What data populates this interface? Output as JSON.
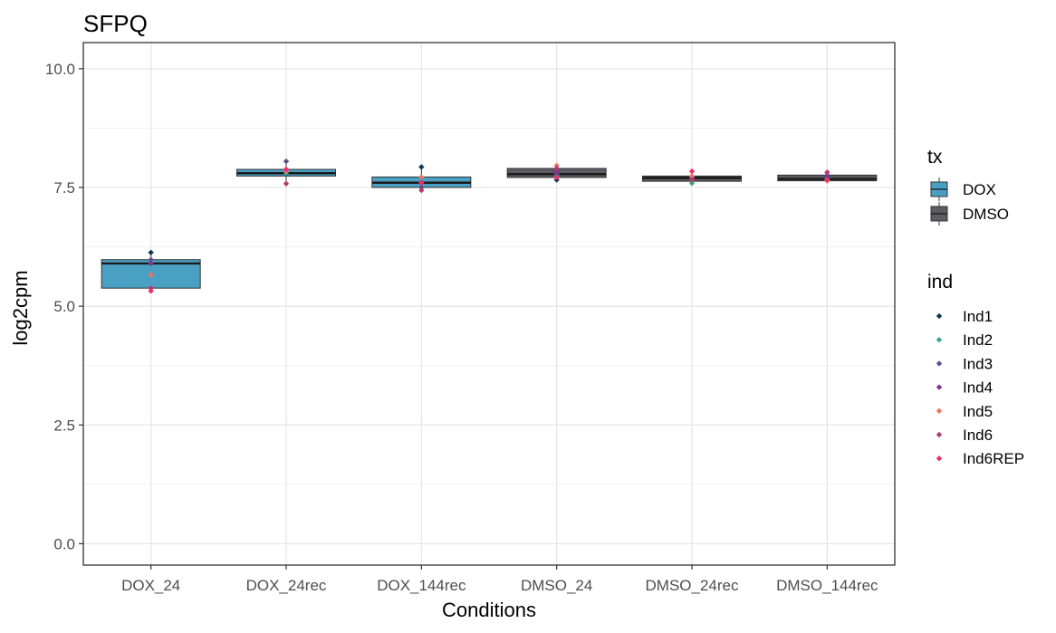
{
  "chart_data": {
    "type": "box",
    "title": "SFPQ",
    "xlabel": "Conditions",
    "ylabel": "log2cpm",
    "ylim": [
      -0.45,
      10.55
    ],
    "yticks": [
      0.0,
      2.5,
      5.0,
      7.5,
      10.0
    ],
    "ytick_labels": [
      "0.0",
      "2.5",
      "5.0",
      "7.5",
      "10.0"
    ],
    "categories": [
      "DOX_24",
      "DOX_24rec",
      "DOX_144rec",
      "DMSO_24",
      "DMSO_24rec",
      "DMSO_144rec"
    ],
    "grid": true,
    "legend_position": "right",
    "tx_legend": {
      "title": "tx",
      "items": [
        {
          "name": "DOX",
          "color": "#4aa0c3"
        },
        {
          "name": "DMSO",
          "color": "#5d5c63"
        }
      ]
    },
    "ind_legend": {
      "title": "ind",
      "items": [
        {
          "name": "Ind1",
          "color": "#0d3a4f"
        },
        {
          "name": "Ind2",
          "color": "#3aa58a"
        },
        {
          "name": "Ind3",
          "color": "#5c4f8e"
        },
        {
          "name": "Ind4",
          "color": "#7b3294"
        },
        {
          "name": "Ind5",
          "color": "#f0715f"
        },
        {
          "name": "Ind6",
          "color": "#b5386e"
        },
        {
          "name": "Ind6REP",
          "color": "#ef2b6c"
        }
      ]
    },
    "boxes": [
      {
        "category": "DOX_24",
        "tx": "DOX",
        "q1": 5.38,
        "median": 5.9,
        "q3": 5.98,
        "min": 5.32,
        "max": 6.13,
        "points": {
          "Ind1": 6.13,
          "Ind2": 5.9,
          "Ind3": 5.98,
          "Ind4": 5.9,
          "Ind5": 5.66,
          "Ind6": 5.38,
          "Ind6REP": 5.32
        }
      },
      {
        "category": "DOX_24rec",
        "tx": "DOX",
        "q1": 7.74,
        "median": 7.8,
        "q3": 7.88,
        "min": 7.58,
        "max": 8.05,
        "points": {
          "Ind1": 7.79,
          "Ind2": 7.8,
          "Ind3": 8.05,
          "Ind4": 7.88,
          "Ind5": 7.84,
          "Ind6": 7.58,
          "Ind6REP": 7.88
        }
      },
      {
        "category": "DOX_144rec",
        "tx": "DOX",
        "q1": 7.5,
        "median": 7.6,
        "q3": 7.72,
        "min": 7.44,
        "max": 7.93,
        "points": {
          "Ind1": 7.93,
          "Ind2": 7.6,
          "Ind3": 7.5,
          "Ind4": 7.6,
          "Ind5": 7.72,
          "Ind6": 7.44,
          "Ind6REP": 7.6
        }
      },
      {
        "category": "DMSO_24",
        "tx": "DMSO",
        "q1": 7.71,
        "median": 7.78,
        "q3": 7.9,
        "min": 7.66,
        "max": 7.96,
        "points": {
          "Ind1": 7.66,
          "Ind2": 7.75,
          "Ind3": 7.78,
          "Ind4": 7.84,
          "Ind5": 7.96,
          "Ind6": 7.9,
          "Ind6REP": 7.71
        }
      },
      {
        "category": "DMSO_24rec",
        "tx": "DMSO",
        "q1": 7.63,
        "median": 7.7,
        "q3": 7.74,
        "min": 7.59,
        "max": 7.84,
        "points": {
          "Ind1": 7.7,
          "Ind2": 7.59,
          "Ind3": 7.72,
          "Ind4": 7.7,
          "Ind5": 7.74,
          "Ind6": 7.66,
          "Ind6REP": 7.84
        }
      },
      {
        "category": "DMSO_144rec",
        "tx": "DMSO",
        "q1": 7.64,
        "median": 7.68,
        "q3": 7.76,
        "min": 7.63,
        "max": 7.82,
        "points": {
          "Ind1": 7.7,
          "Ind2": 7.68,
          "Ind3": 7.76,
          "Ind4": 7.74,
          "Ind5": 7.64,
          "Ind6": 7.82,
          "Ind6REP": 7.66
        }
      }
    ]
  }
}
